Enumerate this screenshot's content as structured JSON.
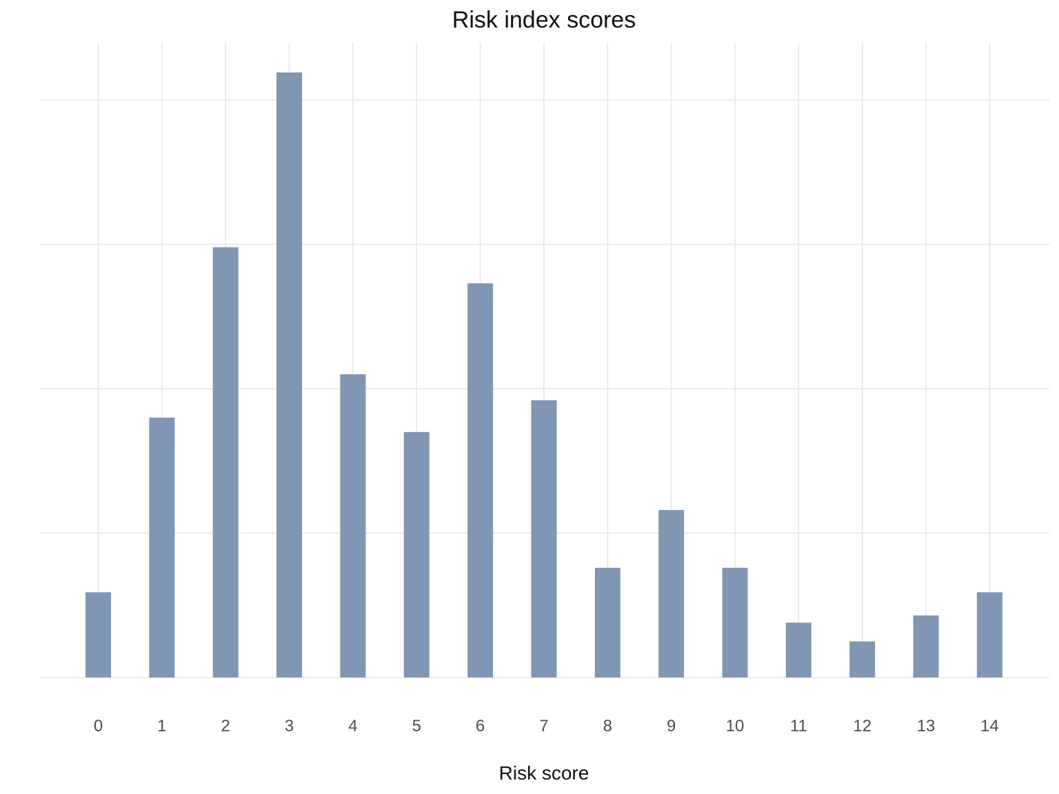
{
  "chart_data": {
    "type": "bar",
    "title": "Risk index scores",
    "xlabel": "Risk score",
    "ylabel": "",
    "categories": [
      "0",
      "1",
      "2",
      "3",
      "4",
      "5",
      "6",
      "7",
      "8",
      "9",
      "10",
      "11",
      "12",
      "13",
      "14"
    ],
    "values": [
      5.9,
      18.0,
      29.8,
      41.9,
      21.0,
      17.0,
      27.3,
      19.2,
      7.6,
      11.6,
      7.6,
      3.8,
      2.5,
      4.3,
      5.9
    ],
    "ylim": [
      0,
      44
    ],
    "y_gridlines": [
      0,
      10,
      20,
      30,
      40
    ],
    "y_tick_labels_shown": false,
    "grid": true,
    "legend": "none",
    "bar_color": "#7f96b5",
    "grid_color": "#e6e6e6"
  }
}
